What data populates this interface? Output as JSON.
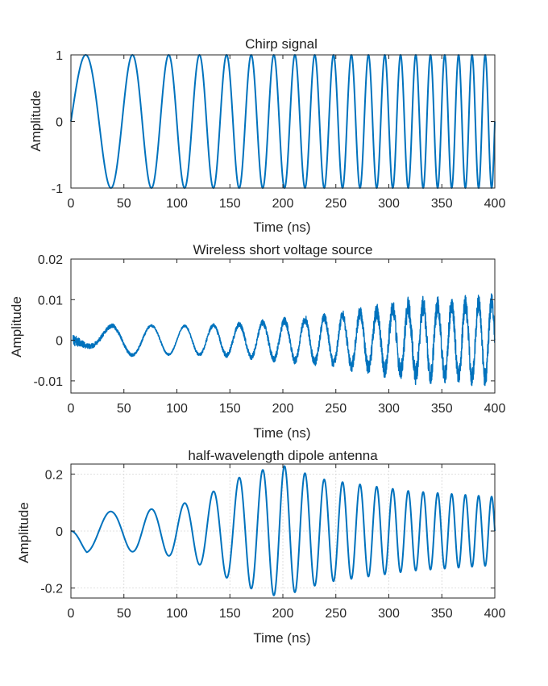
{
  "chart_data": [
    {
      "type": "line",
      "title": "Chirp signal",
      "xlabel": "Time (ns)",
      "ylabel": "Amplitude",
      "xlim": [
        0,
        400
      ],
      "ylim": [
        -1,
        1
      ],
      "xticks": [
        0,
        50,
        100,
        150,
        200,
        250,
        300,
        350,
        400
      ],
      "xtick_labels": [
        "0",
        "50",
        "100",
        "150",
        "200",
        "250",
        "300",
        "350",
        "400"
      ],
      "yticks": [
        -1,
        0,
        1
      ],
      "ytick_labels": [
        "-1",
        "0",
        "1"
      ],
      "grid": false,
      "color": "#0072BD",
      "signal": {
        "kind": "linear-chirp",
        "start_frequency_ghz": 0.0167,
        "end_frequency_ghz": 0.0833,
        "duration_ns": 400,
        "peak_amplitude": 1
      }
    },
    {
      "type": "line",
      "title": "Wireless short voltage source",
      "xlabel": "Time (ns)",
      "ylabel": "Amplitude",
      "xlim": [
        0,
        400
      ],
      "ylim": [
        -0.013,
        0.02
      ],
      "xticks": [
        0,
        50,
        100,
        150,
        200,
        250,
        300,
        350,
        400
      ],
      "xtick_labels": [
        "0",
        "50",
        "100",
        "150",
        "200",
        "250",
        "300",
        "350",
        "400"
      ],
      "yticks": [
        -0.01,
        0,
        0.01,
        0.02
      ],
      "ytick_labels": [
        "-0.01",
        "0",
        "0.01",
        "0.02"
      ],
      "grid": false,
      "color": "#0072BD",
      "signal": {
        "kind": "noisy-growing-chirp",
        "envelope_points": [
          [
            0,
            0.0
          ],
          [
            40,
            0.0037
          ],
          [
            100,
            0.0035
          ],
          [
            150,
            0.0037
          ],
          [
            200,
            0.0047
          ],
          [
            250,
            0.0058
          ],
          [
            300,
            0.0075
          ],
          [
            330,
            0.0085
          ],
          [
            400,
            0.0095
          ]
        ],
        "noise_points": [
          [
            0,
            0.0015
          ],
          [
            15,
            0.0006
          ],
          [
            100,
            0.0002
          ],
          [
            150,
            0.0006
          ],
          [
            250,
            0.0012
          ],
          [
            320,
            0.0026
          ],
          [
            400,
            0.0024
          ]
        ]
      }
    },
    {
      "type": "line",
      "title": "half-wavelength dipole antenna",
      "xlabel": "Time (ns)",
      "ylabel": "Amplitude",
      "xlim": [
        0,
        400
      ],
      "ylim": [
        -0.235,
        0.235
      ],
      "xticks": [
        0,
        50,
        100,
        150,
        200,
        250,
        300,
        350,
        400
      ],
      "xtick_labels": [
        "0",
        "50",
        "100",
        "150",
        "200",
        "250",
        "300",
        "350",
        "400"
      ],
      "yticks": [
        -0.2,
        0,
        0.2
      ],
      "ytick_labels": [
        "-0.2",
        "0",
        "0.2"
      ],
      "grid": true,
      "color": "#0072BD",
      "signal": {
        "kind": "resonant-chirp-response",
        "envelope_points": [
          [
            0,
            0.0
          ],
          [
            15,
            0.075
          ],
          [
            40,
            0.068
          ],
          [
            80,
            0.078
          ],
          [
            110,
            0.1
          ],
          [
            135,
            0.14
          ],
          [
            160,
            0.19
          ],
          [
            190,
            0.225
          ],
          [
            200,
            0.23
          ],
          [
            215,
            0.21
          ],
          [
            240,
            0.18
          ],
          [
            280,
            0.16
          ],
          [
            320,
            0.14
          ],
          [
            360,
            0.13
          ],
          [
            400,
            0.12
          ]
        ]
      }
    }
  ]
}
